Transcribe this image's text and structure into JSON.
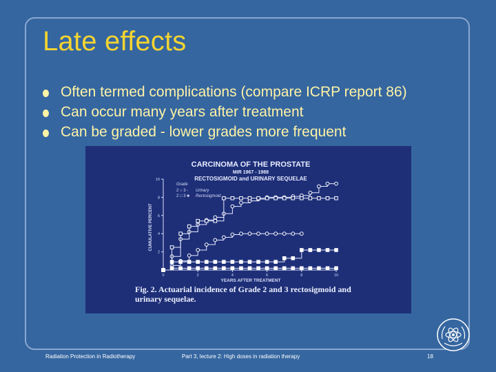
{
  "slide": {
    "title": "Late effects",
    "bullets": [
      "Often termed complications (compare ICRP report 86)",
      "Can occur many years after treatment",
      "Can be graded - lower grades more frequent"
    ]
  },
  "figure": {
    "heading_lines": [
      "CARCINOMA OF THE PROSTATE",
      "MIR 1967 - 1988",
      "RECTOSIGMOID and URINARY SEQUELAE"
    ],
    "caption_lines": [
      "Fig. 2. Actuarial incidence of Grade 2 and 3 rectosigmoid and",
      "urinary sequelae."
    ],
    "legend": {
      "header": "Grade",
      "rows": [
        {
          "label": "2 ○ 3 -",
          "name": "Urinary"
        },
        {
          "label": "2 □ 3 ■",
          "name": "Rectosigmoid"
        }
      ]
    }
  },
  "chart_data": {
    "type": "line",
    "title": "CARCINOMA OF THE PROSTATE",
    "xlabel": "YEARS AFTER TREATMENT",
    "ylabel": "CUMULATIVE PERCENT",
    "xlim": [
      0,
      10
    ],
    "ylim": [
      0,
      10
    ],
    "xticks": [
      0,
      2,
      4,
      6,
      8,
      10
    ],
    "yticks": [
      2,
      4,
      6,
      8,
      10
    ],
    "series": [
      {
        "name": "Urinary grade 2",
        "marker": "open-circle",
        "x": [
          0,
          0.5,
          1,
          1.5,
          2,
          2.5,
          3,
          3.5,
          4,
          4.5,
          5,
          5.5,
          6,
          6.5,
          7,
          7.5,
          8,
          8.5,
          9,
          9.5,
          10
        ],
        "y": [
          0,
          1.5,
          3.4,
          4.2,
          5,
          5.5,
          5.8,
          6.2,
          7,
          7.4,
          7.6,
          7.8,
          8,
          8,
          8,
          8.1,
          8.2,
          8.5,
          9.2,
          9.5,
          9.5
        ]
      },
      {
        "name": "Rectosigmoid grade 2",
        "marker": "open-square",
        "x": [
          0,
          0.5,
          1,
          1.5,
          2,
          2.5,
          3,
          3.5,
          4,
          4.5,
          5,
          5.5,
          6,
          6.5,
          7,
          7.5,
          8,
          8.5,
          9,
          9.5,
          10
        ],
        "y": [
          0,
          2.5,
          4,
          4.8,
          5.4,
          5.4,
          5.4,
          7.9,
          7.9,
          7.9,
          7.9,
          7.9,
          7.9,
          7.9,
          7.9,
          7.9,
          7.9,
          7.9,
          7.9,
          7.9,
          7.9
        ]
      },
      {
        "name": "Urinary grade 3",
        "marker": "open-circle",
        "x": [
          0,
          0.5,
          1,
          1.5,
          2,
          2.5,
          3,
          3.5,
          4,
          4.5,
          5,
          5.5,
          6,
          6.5,
          7,
          7.5,
          8
        ],
        "y": [
          0,
          0.5,
          1,
          1.6,
          2.2,
          2.8,
          3.3,
          3.6,
          3.9,
          4.0,
          4.0,
          4.0,
          4.0,
          4.0,
          4.0,
          4.0,
          4.0
        ]
      },
      {
        "name": "Rectosigmoid grade 3",
        "marker": "filled-square",
        "x": [
          0,
          0.5,
          1,
          1.5,
          2,
          2.5,
          3,
          3.5,
          4,
          4.5,
          5,
          5.5,
          6,
          6.5,
          7,
          7.5,
          8,
          8.5,
          9,
          9.5,
          10
        ],
        "y": [
          0,
          0.9,
          0.9,
          0.9,
          0.9,
          0.9,
          0.9,
          0.9,
          0.9,
          0.9,
          0.9,
          0.9,
          0.9,
          0.9,
          1.3,
          1.3,
          2.2,
          2.2,
          2.2,
          2.2,
          2.2
        ]
      },
      {
        "name": "Urinary grade 3 low",
        "marker": "filled-square",
        "x": [
          0,
          0.5,
          1,
          1.5,
          2,
          2.5,
          3,
          3.5,
          4,
          4.5,
          5,
          5.5,
          6,
          6.5,
          7,
          7.5,
          8,
          8.5,
          9,
          9.5,
          10
        ],
        "y": [
          0,
          0.2,
          0.2,
          0.2,
          0.2,
          0.2,
          0.2,
          0.2,
          0.2,
          0.2,
          0.2,
          0.2,
          0.2,
          0.2,
          0.2,
          0.2,
          0.2,
          0.2,
          0.2,
          0.2,
          0.2
        ]
      }
    ]
  },
  "footer": {
    "left": "Radiation Protection in Radiotherapy",
    "center": "Part 3, lecture 2: High doses in radiation therapy",
    "page": "18"
  },
  "colors": {
    "background": "#3566a0",
    "title": "#f4d431",
    "bullet_text": "#fff3a6",
    "figure_bg": "#1e2f78"
  },
  "icons": {
    "logo": "iaea-atom-logo-icon"
  }
}
